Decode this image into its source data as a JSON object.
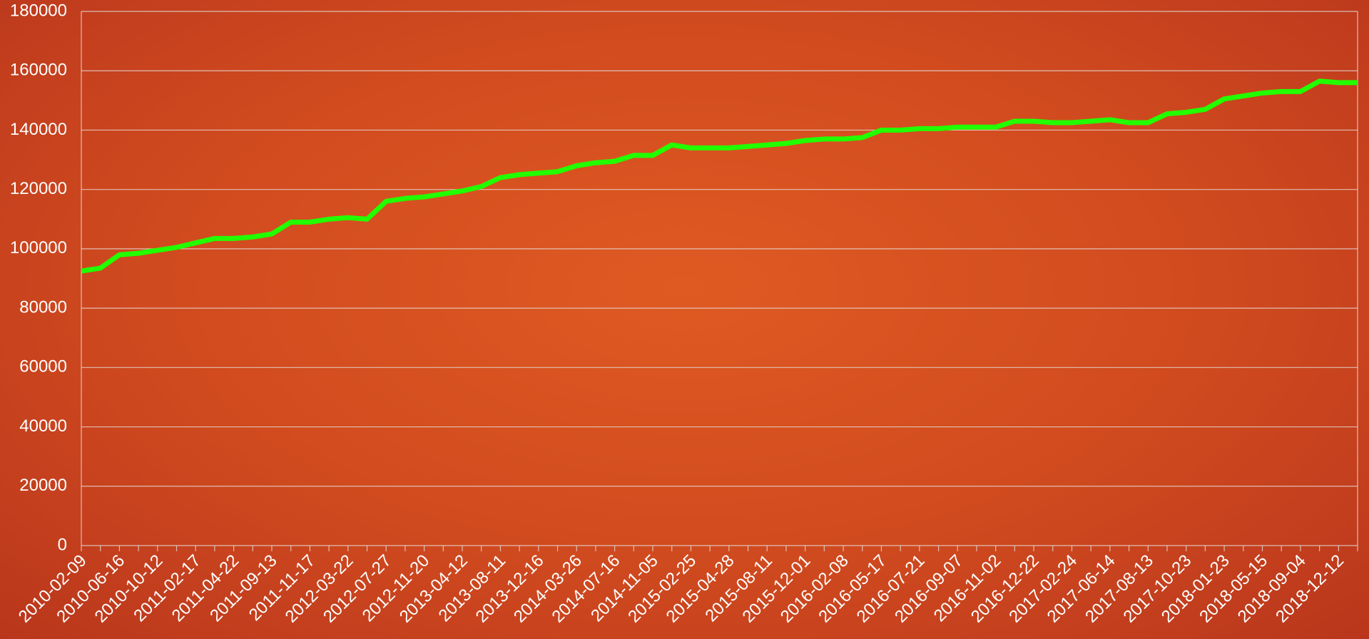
{
  "chart_data": {
    "type": "line",
    "categories": [
      "2010-02-09",
      null,
      "2010-06-16",
      null,
      "2010-10-12",
      null,
      "2011-02-17",
      null,
      "2011-04-22",
      null,
      "2011-09-13",
      null,
      "2011-11-17",
      null,
      "2012-03-22",
      null,
      "2012-07-27",
      null,
      "2012-11-20",
      null,
      "2013-04-12",
      null,
      "2013-08-11",
      null,
      "2013-12-16",
      null,
      "2014-03-26",
      null,
      "2014-07-16",
      null,
      "2014-11-05",
      null,
      "2015-02-25",
      null,
      "2015-04-28",
      null,
      "2015-08-11",
      null,
      "2015-12-01",
      null,
      "2016-02-08",
      null,
      "2016-05-17",
      null,
      "2016-07-21",
      null,
      "2016-09-07",
      null,
      "2016-11-02",
      null,
      "2016-12-22",
      null,
      "2017-02-24",
      null,
      "2017-06-14",
      null,
      "2017-08-13",
      null,
      "2017-10-23",
      null,
      "2018-01-23",
      null,
      "2018-05-15",
      null,
      "2018-09-04",
      null,
      "2018-12-12",
      null
    ],
    "series": [
      {
        "color": "#22ff00",
        "values": [
          92500,
          93500,
          98000,
          98500,
          99500,
          100500,
          102000,
          103500,
          103500,
          104000,
          105000,
          109000,
          109000,
          110000,
          110500,
          110000,
          116000,
          117000,
          117500,
          118500,
          119500,
          121000,
          124000,
          125000,
          125500,
          126000,
          128000,
          129000,
          129500,
          131500,
          131500,
          135000,
          134000,
          134000,
          134000,
          134500,
          135000,
          135500,
          136500,
          137000,
          137000,
          137500,
          140000,
          140000,
          140500,
          140500,
          141000,
          141000,
          141000,
          143000,
          143000,
          142500,
          142500,
          143000,
          143500,
          142500,
          142500,
          145500,
          146000,
          147000,
          150500,
          151500,
          152500,
          153000,
          153000,
          156500,
          156000,
          156000
        ]
      }
    ],
    "ylim": [
      0,
      180000
    ],
    "yticks": [
      0,
      20000,
      40000,
      60000,
      80000,
      100000,
      120000,
      140000,
      160000,
      180000
    ],
    "grid": true
  }
}
